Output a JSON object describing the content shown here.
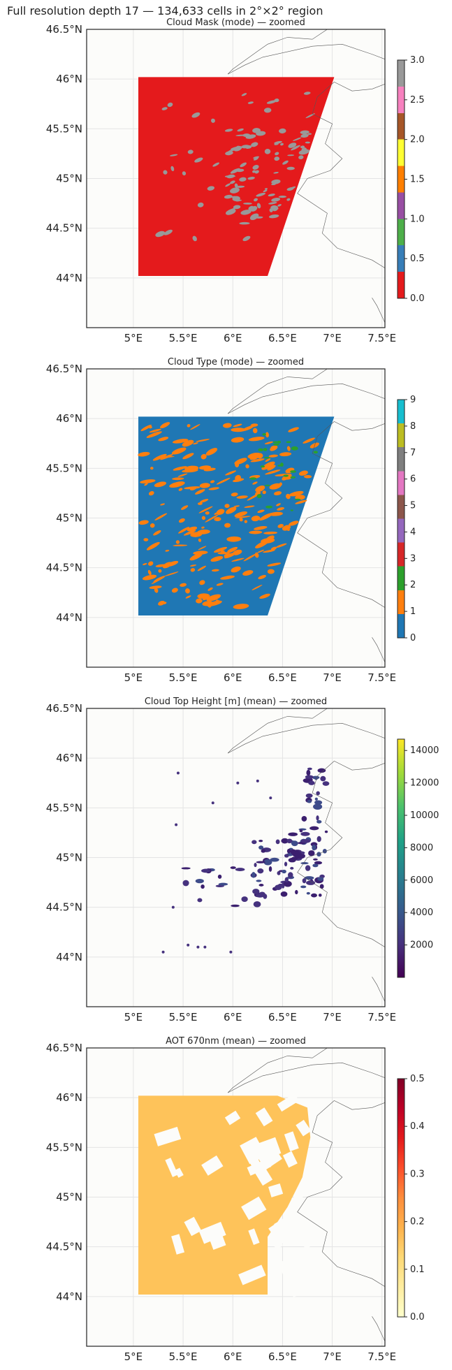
{
  "suptitle": "Full resolution depth 17 — 134,633 cells in 2°×2° region",
  "x_ticks": [
    "5°E",
    "5.5°E",
    "6°E",
    "6.5°E",
    "7°E",
    "7.5°E"
  ],
  "y_ticks": [
    "46.5°N",
    "46°N",
    "45.5°N",
    "45°N",
    "44.5°N",
    "44°N"
  ],
  "chart_data": [
    {
      "type": "heatmap",
      "title": "Cloud Mask (mode) — zoomed",
      "xlim": [
        4.53,
        7.53
      ],
      "ylim": [
        43.5,
        46.5
      ],
      "colormap": "Set1",
      "colorbar": {
        "min": 0.0,
        "max": 3.0,
        "ticks": [
          "0.0",
          "0.5",
          "1.0",
          "1.5",
          "2.0",
          "2.5",
          "3.0"
        ],
        "colors": [
          "#e41a1c",
          "#377eb8",
          "#4daf4a",
          "#984ea3",
          "#ff7f00",
          "#ffff33",
          "#a65628",
          "#f781bf",
          "#999999"
        ]
      },
      "dominant_value": 0,
      "dominant_color": "#e41a1c",
      "secondary_value": 3,
      "secondary_color": "#999999"
    },
    {
      "type": "heatmap",
      "title": "Cloud Type (mode) — zoomed",
      "xlim": [
        4.53,
        7.53
      ],
      "ylim": [
        43.5,
        46.5
      ],
      "colormap": "tab10",
      "colorbar": {
        "min": 0,
        "max": 9,
        "ticks": [
          "0",
          "1",
          "2",
          "3",
          "4",
          "5",
          "6",
          "7",
          "8",
          "9"
        ],
        "colors": [
          "#1f77b4",
          "#ff7f0e",
          "#2ca02c",
          "#d62728",
          "#9467bd",
          "#8c564b",
          "#e377c2",
          "#7f7f7f",
          "#bcbd22",
          "#17becf"
        ]
      },
      "dominant_value": 0,
      "dominant_color": "#1f77b4",
      "secondary_value": 1,
      "secondary_color": "#ff7f0e"
    },
    {
      "type": "heatmap",
      "title": "Cloud Top Height [m] (mean) — zoomed",
      "xlim": [
        4.53,
        7.53
      ],
      "ylim": [
        43.5,
        46.5
      ],
      "colormap": "viridis",
      "colorbar": {
        "min": 0,
        "max": 14700,
        "ticks": [
          "2000",
          "4000",
          "6000",
          "8000",
          "10000",
          "12000",
          "14000"
        ],
        "tick_values": [
          2000,
          4000,
          6000,
          8000,
          10000,
          12000,
          14000
        ],
        "colors": [
          "#440154",
          "#46327e",
          "#365c8d",
          "#277f8e",
          "#1fa187",
          "#4ac16d",
          "#a0da39",
          "#fde725"
        ]
      },
      "dominant_color": "#3b2a7a"
    },
    {
      "type": "heatmap",
      "title": "AOT 670nm (mean) — zoomed",
      "xlim": [
        4.53,
        7.53
      ],
      "ylim": [
        43.5,
        46.5
      ],
      "colormap": "YlOrRd",
      "colorbar": {
        "min": 0.0,
        "max": 0.5,
        "ticks": [
          "0.0",
          "0.1",
          "0.2",
          "0.3",
          "0.4",
          "0.5"
        ],
        "colors": [
          "#ffffcc",
          "#ffeda0",
          "#fed976",
          "#feb24c",
          "#fd8d3c",
          "#fc4e2a",
          "#e31a1c",
          "#bd0026",
          "#800026"
        ]
      },
      "dominant_color": "#fec35a"
    }
  ]
}
